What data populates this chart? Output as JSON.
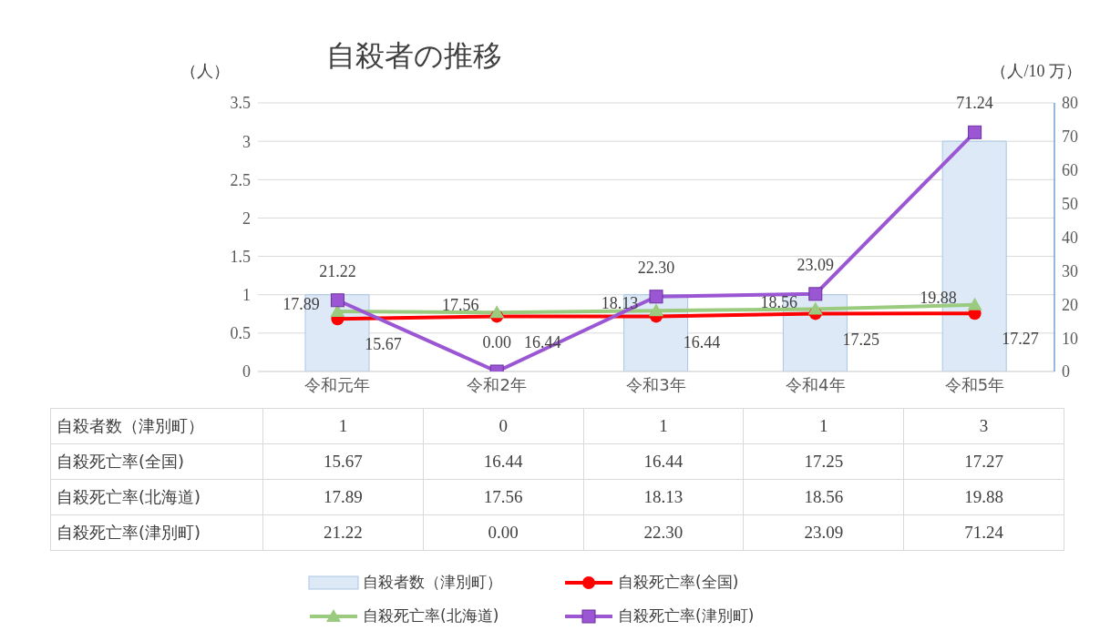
{
  "chart_data": {
    "type": "bar",
    "title": "自殺者の推移",
    "ylabel": "（人）",
    "y2label": "（人/10 万）",
    "categories": [
      "令和元年",
      "令和2年",
      "令和3年",
      "令和4年",
      "令和5年"
    ],
    "series": [
      {
        "name": "自殺者数（津別町）",
        "color": "#dde9f6",
        "values": [
          1,
          0,
          1,
          1,
          3
        ],
        "value_labels": [
          "1",
          "0",
          "1",
          "1",
          "3"
        ]
      },
      {
        "name": "自殺死亡率(全国)",
        "type": "line",
        "axis": "y2",
        "marker": "circle",
        "color": "#ff0000",
        "values": [
          15.67,
          16.44,
          16.44,
          17.25,
          17.27
        ],
        "value_labels": [
          "15.67",
          "16.44",
          "16.44",
          "17.25",
          "17.27"
        ]
      },
      {
        "name": "自殺死亡率(北海道)",
        "type": "line",
        "axis": "y2",
        "marker": "triangle",
        "color": "#9bcb7f",
        "values": [
          17.89,
          17.56,
          18.13,
          18.56,
          19.88
        ],
        "value_labels": [
          "17.89",
          "17.56",
          "18.13",
          "18.56",
          "19.88"
        ]
      },
      {
        "name": "自殺死亡率(津別町)",
        "type": "line",
        "axis": "y2",
        "marker": "square",
        "color": "#9b57d3",
        "values": [
          21.22,
          0,
          22.3,
          23.09,
          71.24
        ],
        "value_labels": [
          "21.22",
          "0.00",
          "22.30",
          "23.09",
          "71.24"
        ]
      }
    ],
    "ylim": [
      0,
      3.5
    ],
    "yticks": [
      0,
      0.5,
      1,
      1.5,
      2,
      2.5,
      3,
      3.5
    ],
    "y2lim": [
      0,
      80
    ],
    "y2ticks": [
      0,
      10,
      20,
      30,
      40,
      50,
      60,
      70,
      80
    ],
    "grid": "y",
    "legend": "bottom",
    "line_style": "solid"
  }
}
